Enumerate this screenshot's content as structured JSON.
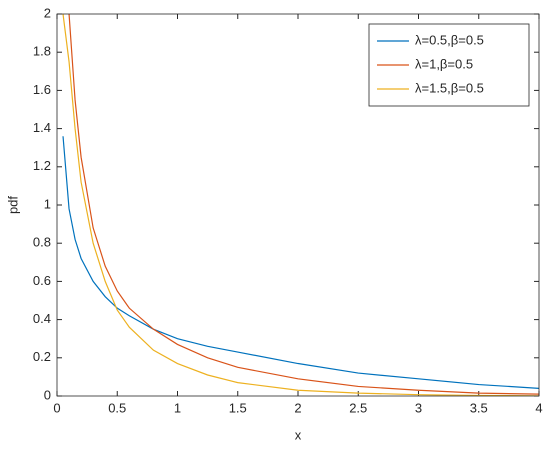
{
  "chart_data": {
    "type": "line",
    "xlabel": "x",
    "ylabel": "pdf",
    "x": [
      0.05,
      0.1,
      0.15,
      0.2,
      0.3,
      0.4,
      0.5,
      0.6,
      0.8,
      1,
      1.25,
      1.5,
      2,
      2.5,
      3,
      3.5,
      4
    ],
    "series": [
      {
        "name": "λ=0.5,β=0.5",
        "color": "#0072bd",
        "values": [
          1.36,
          0.98,
          0.82,
          0.72,
          0.6,
          0.52,
          0.46,
          0.42,
          0.35,
          0.3,
          0.26,
          0.23,
          0.17,
          0.12,
          0.09,
          0.06,
          0.04
        ]
      },
      {
        "name": "λ=1,β=0.5",
        "color": "#d95319",
        "values": [
          null,
          2.0,
          1.55,
          1.25,
          0.88,
          0.68,
          0.55,
          0.46,
          0.35,
          0.27,
          0.2,
          0.15,
          0.09,
          0.05,
          0.03,
          0.015,
          0.01
        ]
      },
      {
        "name": "λ=1.5,β=0.5",
        "color": "#edb120",
        "values": [
          2.0,
          1.75,
          1.4,
          1.12,
          0.8,
          0.6,
          0.45,
          0.36,
          0.24,
          0.17,
          0.11,
          0.07,
          0.03,
          0.015,
          0.007,
          0.003,
          0.001
        ]
      }
    ],
    "xlim": [
      0,
      4
    ],
    "xticks": [
      0,
      0.5,
      1,
      1.5,
      2,
      2.5,
      3,
      3.5,
      4
    ],
    "ylim": [
      0,
      2
    ],
    "yticks": [
      0,
      0.2,
      0.4,
      0.6,
      0.8,
      1,
      1.2,
      1.4,
      1.6,
      1.8,
      2
    ],
    "grid": false,
    "legend": "upper right"
  }
}
